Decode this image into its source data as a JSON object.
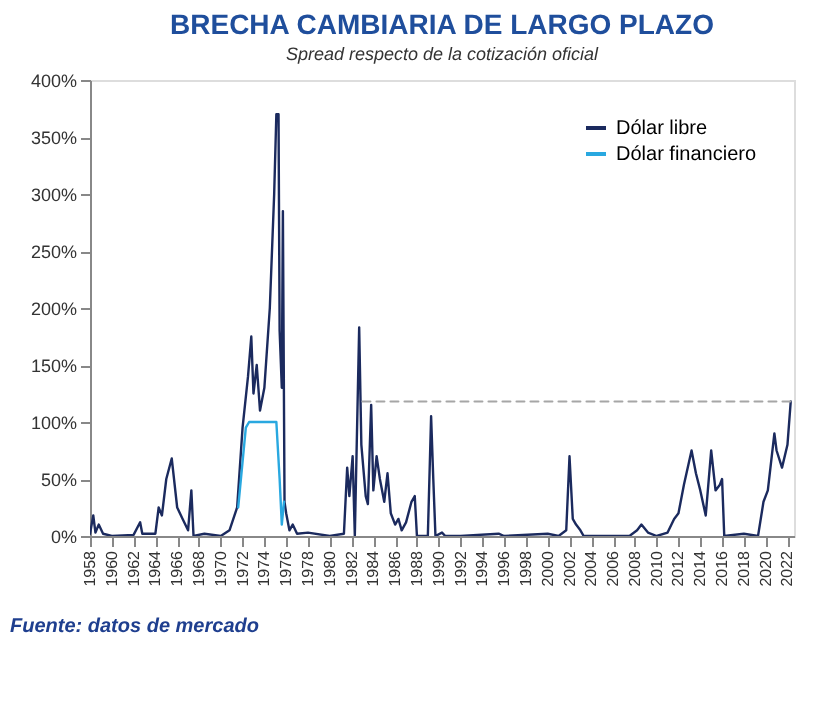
{
  "chart_data": {
    "type": "line",
    "title": "BRECHA CAMBIARIA DE LARGO PLAZO",
    "subtitle": "Spread respecto de la cotización oficial",
    "annotations": [
      "Fuente: datos de mercado"
    ],
    "xlim": [
      1958,
      2022.6
    ],
    "xticks": [
      1958,
      1960,
      1962,
      1964,
      1966,
      1968,
      1970,
      1972,
      1974,
      1976,
      1978,
      1980,
      1982,
      1984,
      1986,
      1988,
      1990,
      1992,
      1994,
      1996,
      1998,
      2000,
      2002,
      2004,
      2006,
      2008,
      2010,
      2012,
      2014,
      2016,
      2018,
      2020,
      2022
    ],
    "ylim": [
      0,
      400
    ],
    "yticks": [
      {
        "value": 0,
        "label": "0%"
      },
      {
        "value": 50,
        "label": "50%"
      },
      {
        "value": 100,
        "label": "100%"
      },
      {
        "value": 150,
        "label": "150%"
      },
      {
        "value": 200,
        "label": "200%"
      },
      {
        "value": 250,
        "label": "250%"
      },
      {
        "value": 300,
        "label": "300%"
      },
      {
        "value": 350,
        "label": "350%"
      },
      {
        "value": 400,
        "label": "400%"
      }
    ],
    "grid": false,
    "legend": "top right",
    "marker": "none",
    "line_style": "solid",
    "series": [
      {
        "name": "Dólar libre",
        "color": "#1b2a5e",
        "x": [
          1958,
          1958.3,
          1958.5,
          1958.8,
          1959.2,
          1960,
          1962,
          1962.6,
          1962.8,
          1964,
          1964.3,
          1964.6,
          1965,
          1965.5,
          1966,
          1966.5,
          1967,
          1967.3,
          1967.5,
          1968.5,
          1970,
          1970.8,
          1971.5,
          1972,
          1972.5,
          1972.8,
          1973,
          1973.3,
          1973.6,
          1974,
          1974.5,
          1974.9,
          1975.1,
          1975.3,
          1975.4,
          1975.6,
          1975.7,
          1975.85,
          1976,
          1976.3,
          1976.6,
          1977,
          1978,
          1980,
          1981.3,
          1981.6,
          1981.8,
          1982.1,
          1982.3,
          1982.7,
          1982.9,
          1983.3,
          1983.5,
          1983.8,
          1984,
          1984.3,
          1984.6,
          1985,
          1985.3,
          1985.6,
          1986,
          1986.3,
          1986.6,
          1987,
          1987.5,
          1987.8,
          1988,
          1989,
          1989.3,
          1989.5,
          1989.7,
          1990.3,
          1990.6,
          1992,
          1995.5,
          1996,
          2000,
          2001,
          2001.7,
          2002,
          2002.3,
          2002.6,
          2003,
          2003.3,
          2005,
          2007.5,
          2008.2,
          2008.6,
          2009.2,
          2010,
          2011,
          2011.6,
          2012,
          2012.5,
          2013.2,
          2013.6,
          2014,
          2014.5,
          2015,
          2015.4,
          2015.8,
          2016,
          2016.2,
          2018,
          2019.3,
          2019.8,
          2020.2,
          2020.8,
          2021,
          2021.5,
          2022,
          2022.3
        ],
        "values": [
          2,
          18,
          3,
          10,
          2,
          0,
          1,
          12,
          2,
          2,
          25,
          18,
          50,
          68,
          25,
          15,
          5,
          40,
          0,
          2,
          0,
          5,
          25,
          95,
          140,
          175,
          125,
          150,
          110,
          130,
          200,
          300,
          370,
          370,
          180,
          130,
          285,
          30,
          20,
          5,
          10,
          2,
          3,
          0,
          2,
          60,
          35,
          70,
          0,
          183,
          80,
          35,
          28,
          115,
          40,
          70,
          50,
          30,
          55,
          20,
          10,
          15,
          5,
          12,
          30,
          35,
          0,
          0,
          105,
          50,
          0,
          3,
          0,
          0,
          2,
          0,
          2,
          0,
          5,
          70,
          15,
          10,
          5,
          0,
          0,
          0,
          5,
          10,
          3,
          0,
          3,
          15,
          20,
          45,
          75,
          55,
          40,
          18,
          75,
          40,
          45,
          50,
          0,
          2,
          0,
          30,
          40,
          90,
          75,
          60,
          80,
          118
        ]
      },
      {
        "name": "Dólar financiero",
        "color": "#29a8e0",
        "x": [
          1971.6,
          1972.3,
          1972.6,
          1975.1,
          1975.4,
          1975.6,
          1975.8
        ],
        "values": [
          25,
          95,
          100,
          100,
          50,
          10,
          30
        ]
      },
      {
        "type": "line",
        "color": "#a6a6a6",
        "line_style": "dashed",
        "x": [
          1983,
          2022.6
        ],
        "values": [
          118,
          118
        ]
      }
    ]
  }
}
